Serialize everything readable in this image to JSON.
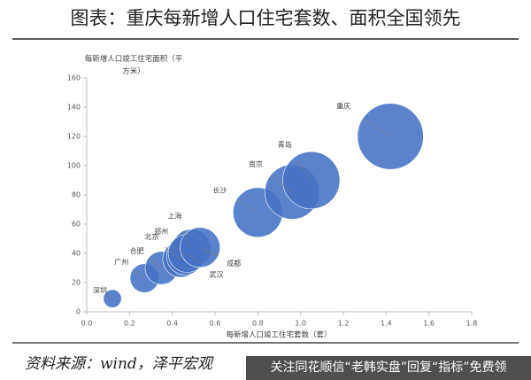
{
  "title": "图表：重庆每新增人口住宅套数、面积全国领先",
  "chart_data": {
    "type": "bubble",
    "ylabel": "每新增人口竣工住宅面积（平方米）",
    "xlabel": "每新增人口竣工住宅套数（套）",
    "xlim": [
      0,
      1.8
    ],
    "xticks": [
      {
        "value": 0,
        "label": "0.0"
      },
      0.2,
      0.4,
      0.6,
      0.8,
      {
        "value": 1,
        "label": "1.0"
      },
      1.2,
      1.4,
      1.6,
      1.8
    ],
    "ylim": [
      0,
      160
    ],
    "yticks": [
      0,
      20,
      40,
      60,
      80,
      100,
      120,
      140,
      160
    ],
    "grid": false,
    "series": [
      {
        "color": "#4472c4",
        "labels": [
          "深圳",
          "广州",
          "合肥",
          "北京",
          "郑州",
          "上海",
          "武汉",
          "成都",
          "长沙",
          "南京",
          "青岛",
          "重庆"
        ],
        "x": [
          0.12,
          0.27,
          0.35,
          0.44,
          0.46,
          0.49,
          0.47,
          0.53,
          0.8,
          0.96,
          1.05,
          1.42
        ],
        "y": [
          9,
          23,
          30,
          36,
          38,
          43,
          40,
          44,
          68,
          82,
          90,
          120
        ]
      }
    ]
  },
  "source": "资料来源：wind，泽平宏观",
  "watermark": "关注同花顺信“老韩实盘”回复“指标”免费领"
}
